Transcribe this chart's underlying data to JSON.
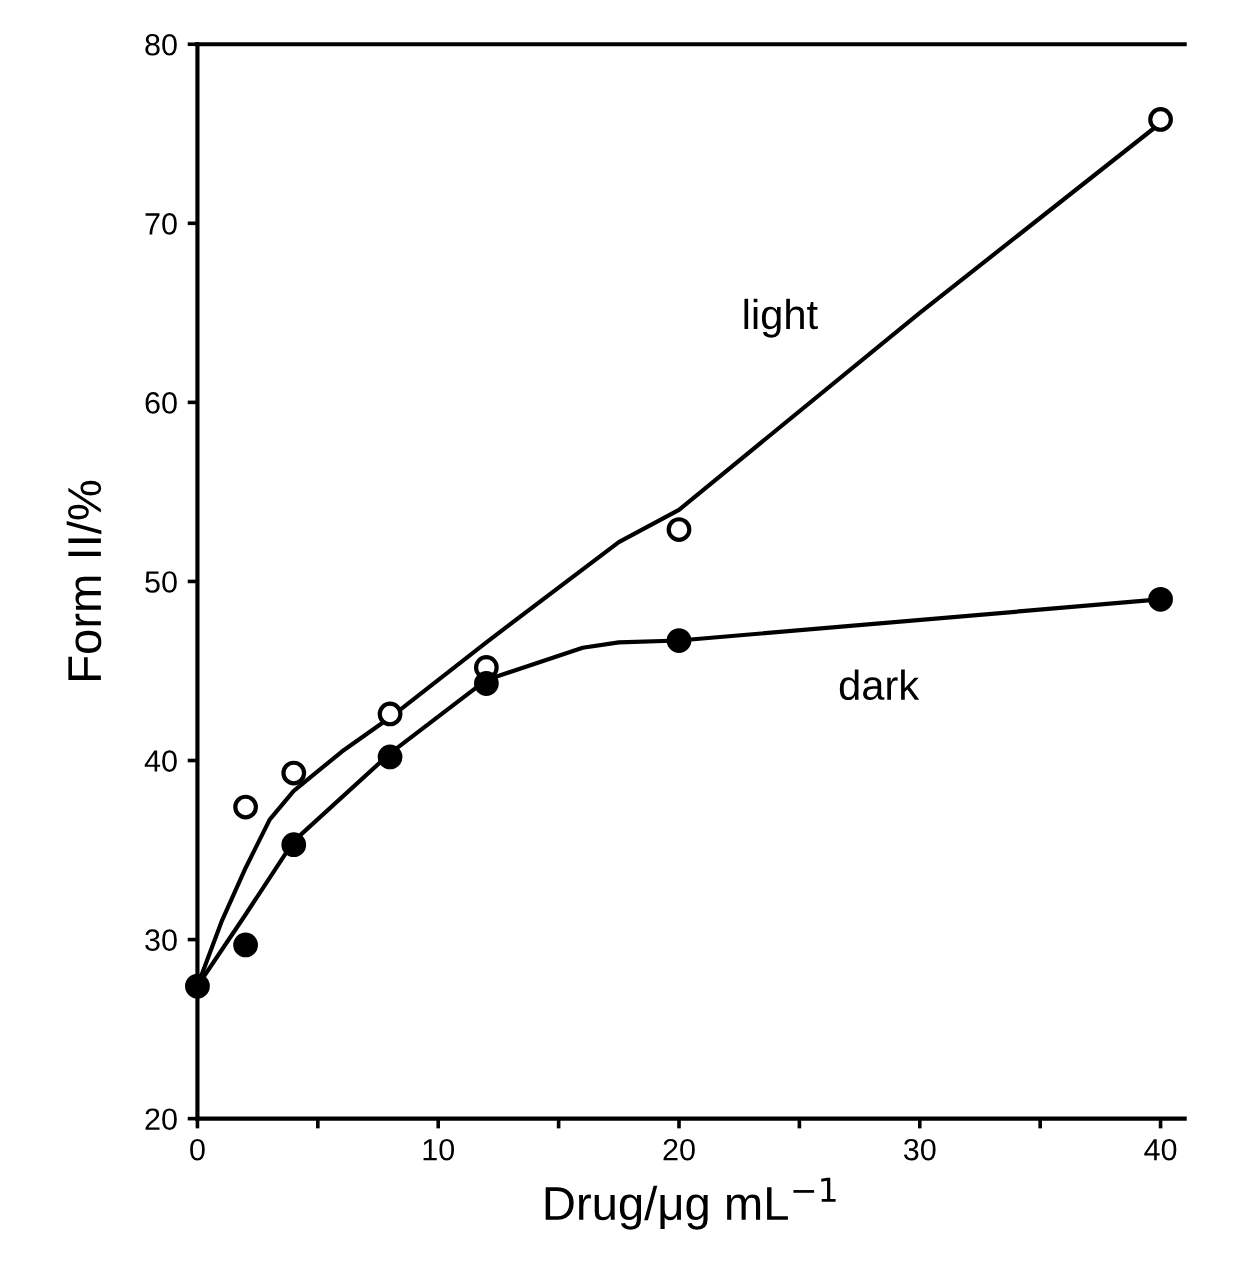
{
  "chart_data": {
    "type": "scatter",
    "xlabel": "Drug/μg mL$^{−1}$",
    "ylabel": "Form II/%",
    "xlim": [
      0,
      41
    ],
    "ylim": [
      20,
      80
    ],
    "xticks": [
      0,
      {
        "value": 5,
        "label": null
      },
      10,
      {
        "value": 15,
        "label": null
      },
      20,
      {
        "value": 25,
        "label": null
      },
      30,
      {
        "value": 35,
        "label": null
      },
      40
    ],
    "yticks": [
      20,
      30,
      40,
      50,
      60,
      70,
      80
    ],
    "grid": false,
    "marker": "circle",
    "series": [
      {
        "type": "line",
        "color": "#000000",
        "marker": "none",
        "x": [
          0,
          1,
          2,
          3,
          4,
          6,
          8,
          12,
          17.5,
          20,
          30,
          40
        ],
        "values": [
          27.4,
          31,
          34,
          36.7,
          38.3,
          40.5,
          42.4,
          46.6,
          52.2,
          54,
          65,
          75.6
        ]
      },
      {
        "type": "line",
        "color": "#000000",
        "marker": "none",
        "x": [
          0,
          2,
          4,
          8,
          12,
          16,
          17.5,
          20,
          40
        ],
        "values": [
          27.4,
          31.4,
          35.5,
          40.4,
          44.5,
          46.3,
          46.6,
          46.7,
          49
        ]
      },
      {
        "color": "#ffffff",
        "x": [
          2,
          4,
          8,
          12,
          20,
          40
        ],
        "values": [
          37.4,
          39.3,
          42.6,
          45.2,
          52.9,
          75.8
        ]
      },
      {
        "color": "#000000",
        "x": [
          0,
          2,
          4,
          8,
          12,
          20,
          40
        ],
        "values": [
          27.4,
          29.7,
          35.3,
          40.2,
          44.3,
          46.7,
          49.0
        ]
      }
    ],
    "annotations": [
      "light",
      "dark"
    ]
  }
}
